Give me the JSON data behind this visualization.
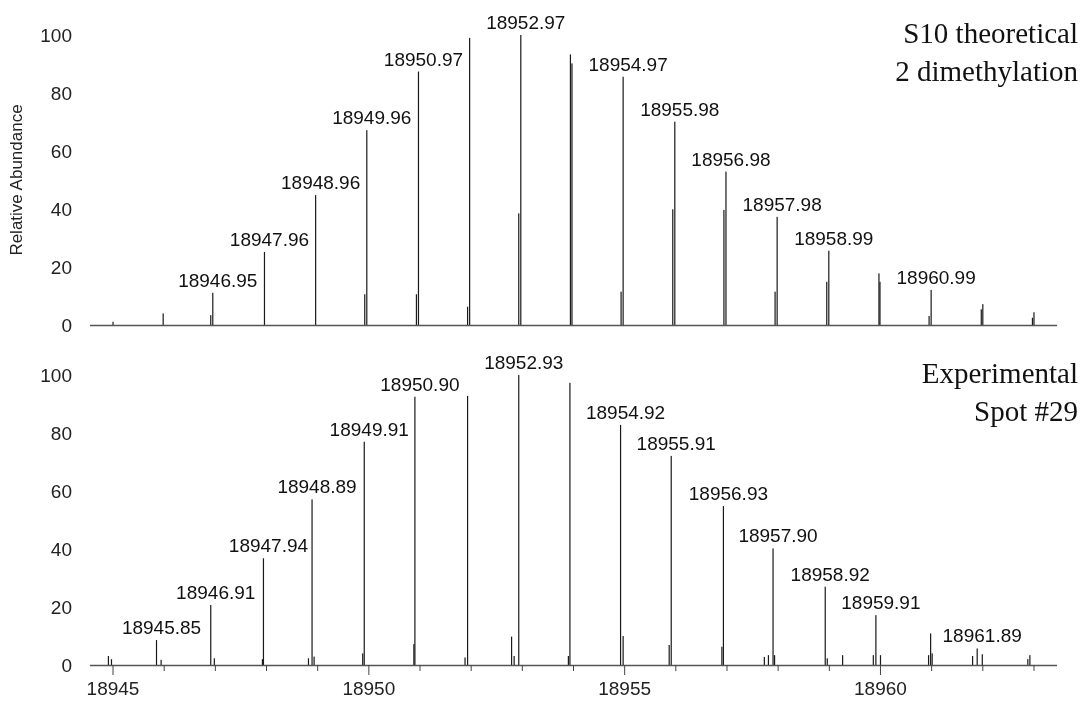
{
  "chart_data": [
    {
      "type": "bar",
      "title": "S10 theoretical",
      "subtitle": "2 dimethylation",
      "ylabel": "Relative Abundance",
      "xlim": [
        18944.55,
        18963.45
      ],
      "ylim": [
        0,
        100
      ],
      "yticks": [
        0,
        20,
        40,
        60,
        80,
        100
      ],
      "tick_labels": "y",
      "series": [
        {
          "color": "#1a1a1a",
          "x": [
            18945.0,
            18945.98,
            18946.91,
            18946.95,
            18947.96,
            18948.96,
            18949.92,
            18949.96,
            18950.93,
            18950.97,
            18951.93,
            18951.97,
            18952.93,
            18952.97,
            18953.94,
            18953.97,
            18954.93,
            18954.97,
            18955.94,
            18955.98,
            18956.94,
            18956.98,
            18957.94,
            18957.98,
            18958.95,
            18958.99,
            18959.97,
            18959.99,
            18960.95,
            18960.99,
            18961.97,
            18962.0,
            18962.97,
            18963.0
          ],
          "values": [
            1.1,
            4.0,
            3.4,
            11.1,
            25.2,
            44.8,
            10.6,
            67.2,
            10.6,
            87.4,
            6.3,
            99.0,
            38.5,
            100,
            93.3,
            90.2,
            11.5,
            85.6,
            39.9,
            70.1,
            39.7,
            52.9,
            11.5,
            37.3,
            14.9,
            25.6,
            17.8,
            14.9,
            3.1,
            12.1,
            5.4,
            7.2,
            2.5,
            4.4
          ]
        }
      ],
      "annotations": [
        {
          "text": "18946.95",
          "x": 18946.95,
          "y": 11.1
        },
        {
          "text": "18947.96",
          "x": 18947.96,
          "y": 25.2
        },
        {
          "text": "18948.96",
          "x": 18948.96,
          "y": 44.8
        },
        {
          "text": "18949.96",
          "x": 18949.96,
          "y": 67.2
        },
        {
          "text": "18950.97",
          "x": 18950.97,
          "y": 87.4
        },
        {
          "text": "18952.97",
          "x": 18952.97,
          "y": 100
        },
        {
          "text": "18954.97",
          "x": 18954.97,
          "y": 85.6
        },
        {
          "text": "18955.98",
          "x": 18955.98,
          "y": 70.1
        },
        {
          "text": "18956.98",
          "x": 18956.98,
          "y": 52.9
        },
        {
          "text": "18957.98",
          "x": 18957.98,
          "y": 37.3
        },
        {
          "text": "18958.99",
          "x": 18958.99,
          "y": 25.6
        },
        {
          "text": "18960.99",
          "x": 18960.99,
          "y": 12.1
        }
      ]
    },
    {
      "type": "bar",
      "title": "Experimental",
      "subtitle": "Spot #29",
      "xlim": [
        18944.55,
        18963.45
      ],
      "ylim": [
        0,
        100
      ],
      "yticks": [
        0,
        20,
        40,
        60,
        80,
        100
      ],
      "xticks": [
        18945,
        {
          "value": 18946,
          "label": null
        },
        {
          "value": 18947,
          "label": null
        },
        {
          "value": 18948,
          "label": null
        },
        {
          "value": 18949,
          "label": null
        },
        18950,
        {
          "value": 18951,
          "label": null
        },
        {
          "value": 18952,
          "label": null
        },
        {
          "value": 18953,
          "label": null
        },
        {
          "value": 18954,
          "label": null
        },
        18955,
        {
          "value": 18956,
          "label": null
        },
        {
          "value": 18957,
          "label": null
        },
        {
          "value": 18958,
          "label": null
        },
        {
          "value": 18959,
          "label": null
        },
        18960,
        {
          "value": 18961,
          "label": null
        },
        {
          "value": 18962,
          "label": null
        },
        {
          "value": 18963,
          "label": null
        }
      ],
      "series": [
        {
          "color": "#1a1a1a",
          "x": [
            18944.91,
            18944.97,
            18945.85,
            18945.94,
            18946.91,
            18946.98,
            18947.92,
            18947.94,
            18948.82,
            18948.89,
            18948.93,
            18949.88,
            18949.91,
            18950.88,
            18950.9,
            18951.88,
            18951.93,
            18952.79,
            18952.84,
            18952.93,
            18953.9,
            18953.93,
            18954.92,
            18954.97,
            18955.87,
            18955.91,
            18956.9,
            18956.93,
            18957.73,
            18957.81,
            18957.9,
            18957.93,
            18958.92,
            18958.96,
            18959.26,
            18959.86,
            18959.91,
            18960.0,
            18960.94,
            18960.98,
            18961.01,
            18961.8,
            18961.89,
            18961.99,
            18962.88,
            18962.92
          ],
          "values": [
            3.1,
            2.0,
            8.6,
            1.8,
            20.7,
            2.3,
            2.0,
            36.8,
            2.3,
            57.1,
            2.9,
            4.0,
            77.0,
            7.2,
            92.5,
            2.6,
            92.8,
            9.8,
            3.1,
            100,
            3.1,
            97.3,
            82.8,
            10.0,
            6.9,
            72.1,
            6.3,
            54.8,
            2.8,
            3.4,
            40.2,
            3.4,
            27.0,
            2.3,
            3.4,
            3.4,
            17.2,
            3.4,
            3.4,
            10.9,
            4.0,
            3.1,
            5.7,
            3.7,
            2.0,
            3.4
          ]
        }
      ],
      "annotations": [
        {
          "text": "18945.85",
          "x": 18945.85,
          "y": 8.6
        },
        {
          "text": "18946.91",
          "x": 18946.91,
          "y": 20.7
        },
        {
          "text": "18947.94",
          "x": 18947.94,
          "y": 36.8
        },
        {
          "text": "18948.89",
          "x": 18948.89,
          "y": 57.1
        },
        {
          "text": "18949.91",
          "x": 18949.91,
          "y": 77.0
        },
        {
          "text": "18950.90",
          "x": 18950.9,
          "y": 92.5
        },
        {
          "text": "18952.93",
          "x": 18952.93,
          "y": 100
        },
        {
          "text": "18954.92",
          "x": 18954.92,
          "y": 82.8
        },
        {
          "text": "18955.91",
          "x": 18955.91,
          "y": 72.1
        },
        {
          "text": "18956.93",
          "x": 18956.93,
          "y": 54.8
        },
        {
          "text": "18957.90",
          "x": 18957.9,
          "y": 40.2
        },
        {
          "text": "18958.92",
          "x": 18958.92,
          "y": 27.0
        },
        {
          "text": "18959.91",
          "x": 18959.91,
          "y": 17.2
        },
        {
          "text": "18961.89",
          "x": 18961.89,
          "y": 5.7
        }
      ]
    }
  ]
}
